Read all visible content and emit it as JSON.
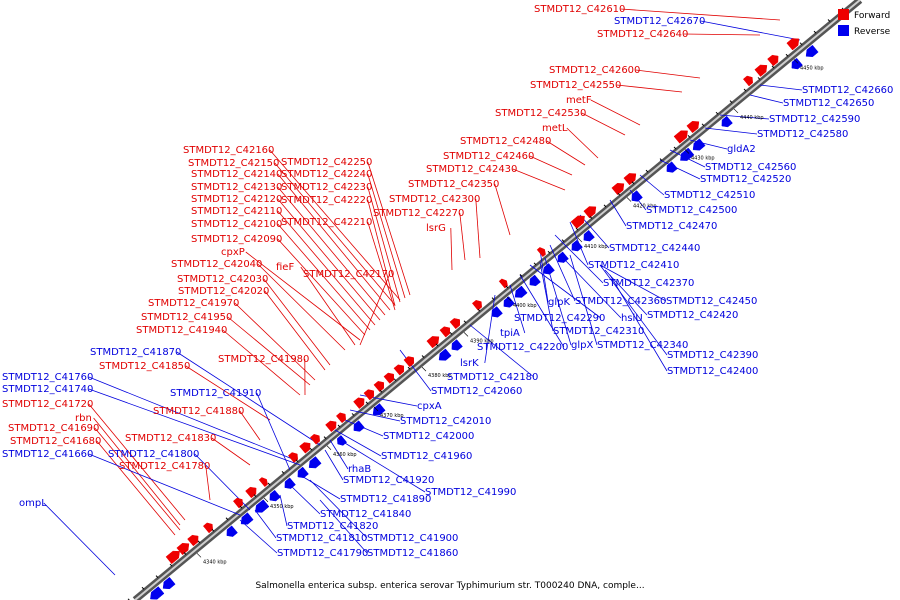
{
  "caption": "Salmonella enterica subsp. enterica serovar Typhimurium str. T000240 DNA, comple...",
  "legend": {
    "forward": {
      "label": "Forward",
      "color": "#ee0000"
    },
    "reverse": {
      "label": "Reverse",
      "color": "#0000ee"
    }
  },
  "ticks": [
    "4340 kbp",
    "4350 kbp",
    "4360 kbp",
    "4370 kbp",
    "4380 kbp",
    "4390 kbp",
    "4400 kbp",
    "4410 kbp",
    "4420 kbp",
    "4430 kbp",
    "4440 kbp",
    "4450 kbp"
  ],
  "forward_labels": [
    "STMDT12_C42610",
    "STMDT12_C42640",
    "STMDT12_C42600",
    "STMDT12_C42550",
    "metF",
    "STMDT12_C42530",
    "metL",
    "STMDT12_C42480",
    "STMDT12_C42460",
    "STMDT12_C42430",
    "STMDT12_C42350",
    "STMDT12_C42300",
    "STMDT12_C42270",
    "lsrG",
    "STMDT12_C42160",
    "STMDT12_C42150",
    "STMDT12_C42140",
    "STMDT12_C42130",
    "STMDT12_C42120",
    "STMDT12_C42110",
    "STMDT12_C42100",
    "STMDT12_C42090",
    "STMDT12_C42250",
    "STMDT12_C42240",
    "STMDT12_C42230",
    "STMDT12_C42220",
    "STMDT12_C42210",
    "cpxP",
    "fieF",
    "STMDT12_C42040",
    "STMDT12_C42170",
    "STMDT12_C42030",
    "STMDT12_C42020",
    "STMDT12_C41970",
    "STMDT12_C41950",
    "STMDT12_C41940",
    "STMDT12_C41980",
    "STMDT12_C41850",
    "STMDT12_C41880",
    "STMDT12_C41720",
    "rbn",
    "STMDT12_C41690",
    "STMDT12_C41680",
    "STMDT12_C41830",
    "STMDT12_C41780"
  ],
  "reverse_labels": [
    "STMDT12_C42670",
    "STMDT12_C42660",
    "STMDT12_C42650",
    "STMDT12_C42590",
    "STMDT12_C42580",
    "gldA2",
    "STMDT12_C42560",
    "STMDT12_C42520",
    "STMDT12_C42510",
    "STMDT12_C42500",
    "STMDT12_C42470",
    "STMDT12_C42440",
    "STMDT12_C42410",
    "STMDT12_C42370",
    "glpK",
    "STMDT12_C42360",
    "STMDT12_C42450",
    "STMDT12_C42290",
    "hslU",
    "STMDT12_C42420",
    "tpiA",
    "STMDT12_C42310",
    "glpX",
    "STMDT12_C42340",
    "STMDT12_C42200",
    "STMDT12_C42390",
    "lsrK",
    "STMDT12_C42400",
    "STMDT12_C42180",
    "STMDT12_C42060",
    "STMDT12_C41870",
    "STMDT12_C41760",
    "STMDT12_C41740",
    "STMDT12_C41910",
    "cpxA",
    "STMDT12_C42010",
    "STMDT12_C42000",
    "STMDT12_C41800",
    "STMDT12_C41660",
    "STMDT12_C41960",
    "rhaB",
    "STMDT12_C41920",
    "STMDT12_C41990",
    "STMDT12_C41890",
    "STMDT12_C41840",
    "STMDT12_C41820",
    "STMDT12_C41900",
    "STMDT12_C41810",
    "ompL",
    "STMDT12_C41790",
    "STMDT12_C41860"
  ]
}
